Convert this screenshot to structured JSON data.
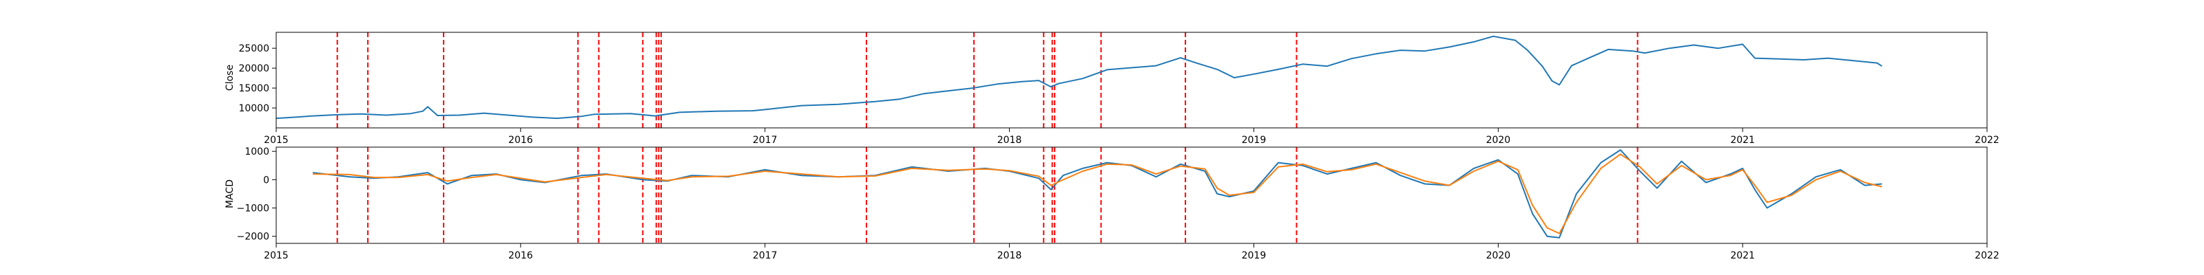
{
  "chart_data": [
    {
      "type": "line",
      "ylabel": "Close",
      "xlim": [
        2015.0,
        2022.0
      ],
      "ylim": [
        5000,
        29000
      ],
      "xticks": [
        2015,
        2016,
        2017,
        2018,
        2019,
        2020,
        2021,
        2022
      ],
      "xtick_labels": [
        "2015",
        "2016",
        "2017",
        "2018",
        "2019",
        "2020",
        "2021",
        "2022"
      ],
      "yticks": [
        10000,
        15000,
        20000,
        25000
      ],
      "ytick_labels": [
        "10000",
        "15000",
        "20000",
        "25000"
      ],
      "series": [
        {
          "color": "#1f77b4",
          "points": [
            [
              2015.0,
              7400
            ],
            [
              2015.08,
              7700
            ],
            [
              2015.15,
              8000
            ],
            [
              2015.25,
              8300
            ],
            [
              2015.35,
              8500
            ],
            [
              2015.45,
              8200
            ],
            [
              2015.55,
              8600
            ],
            [
              2015.6,
              9200
            ],
            [
              2015.62,
              10300
            ],
            [
              2015.66,
              8100
            ],
            [
              2015.75,
              8200
            ],
            [
              2015.85,
              8700
            ],
            [
              2015.95,
              8200
            ],
            [
              2016.05,
              7700
            ],
            [
              2016.15,
              7400
            ],
            [
              2016.25,
              7900
            ],
            [
              2016.3,
              8400
            ],
            [
              2016.45,
              8600
            ],
            [
              2016.55,
              8000
            ],
            [
              2016.65,
              8900
            ],
            [
              2016.8,
              9200
            ],
            [
              2016.95,
              9300
            ],
            [
              2017.0,
              9600
            ],
            [
              2017.15,
              10600
            ],
            [
              2017.3,
              10900
            ],
            [
              2017.45,
              11600
            ],
            [
              2017.55,
              12200
            ],
            [
              2017.65,
              13600
            ],
            [
              2017.75,
              14300
            ],
            [
              2017.85,
              15000
            ],
            [
              2017.95,
              16000
            ],
            [
              2018.05,
              16600
            ],
            [
              2018.12,
              16900
            ],
            [
              2018.17,
              15300
            ],
            [
              2018.2,
              16100
            ],
            [
              2018.3,
              17400
            ],
            [
              2018.4,
              19600
            ],
            [
              2018.5,
              20100
            ],
            [
              2018.6,
              20600
            ],
            [
              2018.7,
              22600
            ],
            [
              2018.77,
              21200
            ],
            [
              2018.85,
              19700
            ],
            [
              2018.92,
              17600
            ],
            [
              2019.0,
              18500
            ],
            [
              2019.1,
              19700
            ],
            [
              2019.2,
              21000
            ],
            [
              2019.3,
              20500
            ],
            [
              2019.4,
              22400
            ],
            [
              2019.5,
              23600
            ],
            [
              2019.6,
              24500
            ],
            [
              2019.7,
              24300
            ],
            [
              2019.8,
              25300
            ],
            [
              2019.9,
              26600
            ],
            [
              2019.98,
              28000
            ],
            [
              2020.07,
              27000
            ],
            [
              2020.12,
              24500
            ],
            [
              2020.18,
              20500
            ],
            [
              2020.22,
              16800
            ],
            [
              2020.25,
              15800
            ],
            [
              2020.3,
              20600
            ],
            [
              2020.38,
              22800
            ],
            [
              2020.45,
              24700
            ],
            [
              2020.55,
              24300
            ],
            [
              2020.6,
              23800
            ],
            [
              2020.7,
              25000
            ],
            [
              2020.8,
              25800
            ],
            [
              2020.9,
              25000
            ],
            [
              2021.0,
              26000
            ],
            [
              2021.05,
              22500
            ],
            [
              2021.15,
              22300
            ],
            [
              2021.25,
              22100
            ],
            [
              2021.35,
              22500
            ],
            [
              2021.45,
              21900
            ],
            [
              2021.55,
              21300
            ],
            [
              2021.57,
              20500
            ]
          ]
        }
      ]
    },
    {
      "type": "line",
      "ylabel": "MACD",
      "xlim": [
        2015.0,
        2022.0
      ],
      "ylim": [
        -2250,
        1150
      ],
      "xticks": [
        2015,
        2016,
        2017,
        2018,
        2019,
        2020,
        2021,
        2022
      ],
      "xtick_labels": [
        "2015",
        "2016",
        "2017",
        "2018",
        "2019",
        "2020",
        "2021",
        "2022"
      ],
      "yticks": [
        -2000,
        -1000,
        0,
        1000
      ],
      "ytick_labels": [
        "−2000",
        "−1000",
        "0",
        "1000"
      ],
      "series": [
        {
          "color": "#1f77b4",
          "points": [
            [
              2015.15,
              250
            ],
            [
              2015.3,
              100
            ],
            [
              2015.4,
              50
            ],
            [
              2015.5,
              100
            ],
            [
              2015.62,
              250
            ],
            [
              2015.7,
              -150
            ],
            [
              2015.8,
              150
            ],
            [
              2015.9,
              200
            ],
            [
              2016.0,
              0
            ],
            [
              2016.1,
              -100
            ],
            [
              2016.25,
              150
            ],
            [
              2016.35,
              200
            ],
            [
              2016.5,
              0
            ],
            [
              2016.6,
              -50
            ],
            [
              2016.7,
              150
            ],
            [
              2016.85,
              100
            ],
            [
              2017.0,
              350
            ],
            [
              2017.15,
              150
            ],
            [
              2017.3,
              100
            ],
            [
              2017.45,
              150
            ],
            [
              2017.6,
              450
            ],
            [
              2017.75,
              300
            ],
            [
              2017.9,
              400
            ],
            [
              2018.0,
              300
            ],
            [
              2018.12,
              50
            ],
            [
              2018.17,
              -350
            ],
            [
              2018.22,
              150
            ],
            [
              2018.3,
              400
            ],
            [
              2018.4,
              600
            ],
            [
              2018.5,
              500
            ],
            [
              2018.6,
              100
            ],
            [
              2018.7,
              550
            ],
            [
              2018.8,
              300
            ],
            [
              2018.85,
              -500
            ],
            [
              2018.9,
              -600
            ],
            [
              2019.0,
              -400
            ],
            [
              2019.1,
              600
            ],
            [
              2019.2,
              500
            ],
            [
              2019.3,
              200
            ],
            [
              2019.4,
              400
            ],
            [
              2019.5,
              600
            ],
            [
              2019.6,
              150
            ],
            [
              2019.7,
              -150
            ],
            [
              2019.8,
              -200
            ],
            [
              2019.9,
              400
            ],
            [
              2020.0,
              700
            ],
            [
              2020.08,
              200
            ],
            [
              2020.14,
              -1200
            ],
            [
              2020.2,
              -2000
            ],
            [
              2020.25,
              -2050
            ],
            [
              2020.32,
              -500
            ],
            [
              2020.42,
              600
            ],
            [
              2020.5,
              1050
            ],
            [
              2020.58,
              300
            ],
            [
              2020.65,
              -300
            ],
            [
              2020.75,
              650
            ],
            [
              2020.85,
              -100
            ],
            [
              2020.95,
              200
            ],
            [
              2021.0,
              400
            ],
            [
              2021.05,
              -350
            ],
            [
              2021.1,
              -1000
            ],
            [
              2021.2,
              -500
            ],
            [
              2021.3,
              100
            ],
            [
              2021.4,
              350
            ],
            [
              2021.5,
              -200
            ],
            [
              2021.57,
              -150
            ]
          ]
        },
        {
          "color": "#ff7f0e",
          "points": [
            [
              2015.15,
              200
            ],
            [
              2015.3,
              180
            ],
            [
              2015.4,
              80
            ],
            [
              2015.5,
              80
            ],
            [
              2015.62,
              180
            ],
            [
              2015.7,
              -50
            ],
            [
              2015.8,
              80
            ],
            [
              2015.9,
              180
            ],
            [
              2016.0,
              50
            ],
            [
              2016.1,
              -80
            ],
            [
              2016.25,
              80
            ],
            [
              2016.35,
              180
            ],
            [
              2016.5,
              50
            ],
            [
              2016.6,
              -30
            ],
            [
              2016.7,
              100
            ],
            [
              2016.85,
              120
            ],
            [
              2017.0,
              300
            ],
            [
              2017.15,
              200
            ],
            [
              2017.3,
              100
            ],
            [
              2017.45,
              130
            ],
            [
              2017.6,
              400
            ],
            [
              2017.75,
              330
            ],
            [
              2017.9,
              380
            ],
            [
              2018.0,
              320
            ],
            [
              2018.12,
              120
            ],
            [
              2018.17,
              -200
            ],
            [
              2018.22,
              0
            ],
            [
              2018.3,
              300
            ],
            [
              2018.4,
              550
            ],
            [
              2018.5,
              520
            ],
            [
              2018.6,
              200
            ],
            [
              2018.7,
              480
            ],
            [
              2018.8,
              380
            ],
            [
              2018.85,
              -300
            ],
            [
              2018.9,
              -550
            ],
            [
              2019.0,
              -450
            ],
            [
              2019.1,
              450
            ],
            [
              2019.2,
              550
            ],
            [
              2019.3,
              280
            ],
            [
              2019.4,
              350
            ],
            [
              2019.5,
              550
            ],
            [
              2019.6,
              250
            ],
            [
              2019.7,
              -50
            ],
            [
              2019.8,
              -200
            ],
            [
              2019.9,
              300
            ],
            [
              2020.0,
              650
            ],
            [
              2020.08,
              350
            ],
            [
              2020.14,
              -900
            ],
            [
              2020.2,
              -1700
            ],
            [
              2020.25,
              -1900
            ],
            [
              2020.32,
              -800
            ],
            [
              2020.42,
              400
            ],
            [
              2020.5,
              900
            ],
            [
              2020.58,
              450
            ],
            [
              2020.65,
              -150
            ],
            [
              2020.75,
              500
            ],
            [
              2020.85,
              0
            ],
            [
              2020.95,
              150
            ],
            [
              2021.0,
              350
            ],
            [
              2021.05,
              -200
            ],
            [
              2021.1,
              -800
            ],
            [
              2021.2,
              -550
            ],
            [
              2021.3,
              0
            ],
            [
              2021.4,
              300
            ],
            [
              2021.5,
              -100
            ],
            [
              2021.57,
              -250
            ]
          ]
        }
      ]
    }
  ],
  "event_markers": {
    "color": "#ff0000",
    "dates": [
      2015.25,
      2015.375,
      2015.685,
      2016.235,
      2016.32,
      2016.5,
      2016.555,
      2016.565,
      2016.575,
      2017.415,
      2017.855,
      2018.14,
      2018.175,
      2018.185,
      2018.375,
      2018.72,
      2019.175,
      2020.57
    ]
  }
}
